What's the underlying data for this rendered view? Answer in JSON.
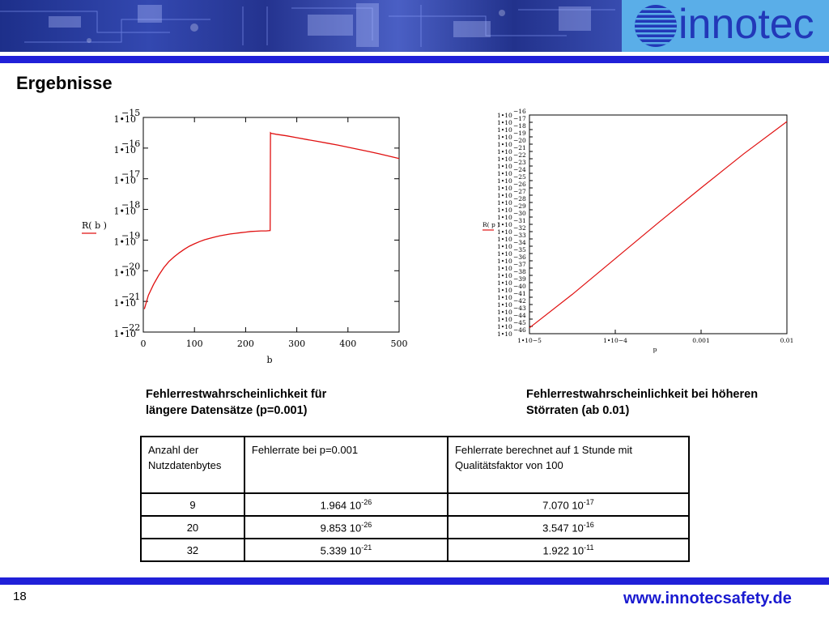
{
  "header": {
    "logo_text": "innotec",
    "colors": {
      "bar": "#2020d8",
      "logo_bg": "#5aaee8",
      "logo_text": "#2238b8",
      "curve": "#e01010"
    }
  },
  "slide": {
    "title": "Ergebnisse",
    "page_number": "18",
    "website": "www.innotecsafety.de"
  },
  "captions": {
    "left": [
      "Fehlerrestwahrscheinlichkeit für",
      "längere Datensätze (p=0.001)"
    ],
    "right": [
      "Fehlerrestwahrscheinlichkeit bei höheren",
      "Störraten (ab 0.01)"
    ]
  },
  "table": {
    "headers": [
      "Anzahl der Nutzdatenbytes",
      "Fehlerrate bei p=0.001",
      "Fehlerrate berechnet auf 1 Stunde mit Qualitätsfaktor von 100"
    ],
    "rows": [
      {
        "bytes": "9",
        "rate_mantissa": "1.964 10",
        "rate_exp": "-26",
        "hour_mantissa": "7.070 10",
        "hour_exp": "-17"
      },
      {
        "bytes": "20",
        "rate_mantissa": "9.853 10",
        "rate_exp": "-26",
        "hour_mantissa": "3.547 10",
        "hour_exp": "-16"
      },
      {
        "bytes": "32",
        "rate_mantissa": "5.339 10",
        "rate_exp": "-21",
        "hour_mantissa": "1.922 10",
        "hour_exp": "-11"
      }
    ]
  },
  "chart_data": [
    {
      "type": "line",
      "xlabel": "b",
      "ylabel": "R( b )",
      "x_ticks": [
        "0",
        "100",
        "200",
        "300",
        "400",
        "500"
      ],
      "xlim": [
        0,
        500
      ],
      "y_scale": "log",
      "ylim_exp": [
        -22,
        -15
      ],
      "y_tick_mantissa": "1•10",
      "y_tick_exponents": [
        "−15",
        "−16",
        "−17",
        "−18",
        "−19",
        "−20",
        "−21",
        "−22"
      ],
      "series": [
        {
          "x": [
            2,
            10,
            20,
            30,
            40,
            50,
            60,
            70,
            80,
            90,
            100,
            110,
            120,
            130,
            140,
            150,
            160,
            170,
            180,
            190,
            200,
            210,
            220,
            230,
            240,
            248,
            248.5,
            250,
            260,
            280,
            300,
            320,
            340,
            360,
            380,
            400,
            420,
            440,
            460,
            480,
            500
          ],
          "y_exp": [
            -21.25,
            -20.8,
            -20.45,
            -20.15,
            -19.9,
            -19.7,
            -19.55,
            -19.42,
            -19.3,
            -19.2,
            -19.12,
            -19.05,
            -18.99,
            -18.94,
            -18.9,
            -18.86,
            -18.83,
            -18.8,
            -18.78,
            -18.76,
            -18.74,
            -18.72,
            -18.71,
            -18.7,
            -18.7,
            -18.69,
            -15.5,
            -15.52,
            -15.55,
            -15.6,
            -15.66,
            -15.72,
            -15.78,
            -15.84,
            -15.9,
            -15.97,
            -16.04,
            -16.11,
            -16.18,
            -16.26,
            -16.34
          ]
        }
      ]
    },
    {
      "type": "line",
      "xlabel": "p",
      "ylabel": "R( p )",
      "x_scale": "log",
      "xlim_exp": [
        -5,
        -2
      ],
      "x_ticks": [
        "1•10−5",
        "1•10−4",
        "0.001",
        "0.01"
      ],
      "y_scale": "log",
      "ylim_exp": [
        -46,
        -16
      ],
      "y_tick_mantissa": "1•10",
      "y_tick_exponents": [
        "−16",
        "−17",
        "−18",
        "−19",
        "−20",
        "−21",
        "−22",
        "−23",
        "−24",
        "−25",
        "−26",
        "−27",
        "−28",
        "−29",
        "−30",
        "−31",
        "−32",
        "−33",
        "−34",
        "−35",
        "−36",
        "−37",
        "−38",
        "−39",
        "−40",
        "−41",
        "−42",
        "−43",
        "−44",
        "−45",
        "−46"
      ],
      "series": [
        {
          "x_exp": [
            -5,
            -4.5,
            -4,
            -3.5,
            -3,
            -2.5,
            -2
          ],
          "y_exp": [
            -45.2,
            -40.6,
            -35.7,
            -30.8,
            -26.0,
            -21.3,
            -16.9
          ]
        }
      ]
    }
  ]
}
